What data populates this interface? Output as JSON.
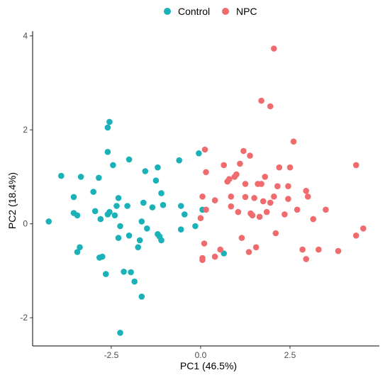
{
  "chart_data": {
    "type": "scatter",
    "xlabel": "PC1 (46.5%)",
    "ylabel": "PC2 (18.4%)",
    "xlim": [
      -4.7,
      5.0
    ],
    "ylim": [
      -2.6,
      4.1
    ],
    "xticks": [
      -2.5,
      0.0,
      2.5
    ],
    "xtick_labels": [
      "-2.5",
      "0.0",
      "2.5"
    ],
    "yticks": [
      -2,
      0,
      2,
      4
    ],
    "ytick_labels": [
      "-2",
      "0",
      "2",
      "4"
    ],
    "grid": false,
    "legend_position": "top",
    "series": [
      {
        "name": "Control",
        "color": "#1ab2b8",
        "points": [
          [
            -4.25,
            0.05
          ],
          [
            -3.9,
            1.02
          ],
          [
            -3.55,
            0.57
          ],
          [
            -3.55,
            0.23
          ],
          [
            -3.45,
            0.18
          ],
          [
            -3.45,
            -0.6
          ],
          [
            -3.38,
            -0.5
          ],
          [
            -3.35,
            1.0
          ],
          [
            -3.0,
            0.68
          ],
          [
            -2.95,
            0.27
          ],
          [
            -2.85,
            0.98
          ],
          [
            -2.83,
            -0.72
          ],
          [
            -2.75,
            -0.7
          ],
          [
            -2.8,
            0.1
          ],
          [
            -2.65,
            -1.07
          ],
          [
            -2.6,
            0.2
          ],
          [
            -2.6,
            2.05
          ],
          [
            -2.55,
            2.17
          ],
          [
            -2.6,
            1.53
          ],
          [
            -2.55,
            0.25
          ],
          [
            -2.45,
            1.25
          ],
          [
            -2.4,
            0.18
          ],
          [
            -2.35,
            0.38
          ],
          [
            -2.3,
            -0.3
          ],
          [
            -2.3,
            0.55
          ],
          [
            -2.25,
            -0.05
          ],
          [
            -2.25,
            -2.32
          ],
          [
            -2.15,
            -1.02
          ],
          [
            -2.05,
            0.38
          ],
          [
            -2.0,
            -0.25
          ],
          [
            -2.0,
            1.37
          ],
          [
            -1.95,
            -1.03
          ],
          [
            -1.85,
            -1.23
          ],
          [
            -1.75,
            -0.5
          ],
          [
            -1.7,
            -0.35
          ],
          [
            -1.65,
            0.05
          ],
          [
            -1.65,
            -1.55
          ],
          [
            -1.6,
            0.45
          ],
          [
            -1.55,
            1.12
          ],
          [
            -1.5,
            -0.1
          ],
          [
            -1.35,
            0.35
          ],
          [
            -1.25,
            0.92
          ],
          [
            -1.2,
            -0.22
          ],
          [
            -1.15,
            -0.27
          ],
          [
            -1.1,
            -0.35
          ],
          [
            -1.1,
            0.65
          ],
          [
            -1.05,
            0.4
          ],
          [
            -1.2,
            1.2
          ],
          [
            -0.6,
            1.35
          ],
          [
            -0.55,
            0.38
          ],
          [
            -0.55,
            -0.12
          ],
          [
            -0.45,
            0.2
          ],
          [
            -0.15,
            -0.05
          ],
          [
            -0.05,
            1.5
          ],
          [
            0.05,
            0.3
          ],
          [
            0.65,
            -0.63
          ]
        ]
      },
      {
        "name": "NPC",
        "color": "#f06b6d",
        "points": [
          [
            0.05,
            0.58
          ],
          [
            0.0,
            0.12
          ],
          [
            0.05,
            -0.77
          ],
          [
            0.05,
            -0.73
          ],
          [
            0.1,
            -0.42
          ],
          [
            0.12,
            1.58
          ],
          [
            0.15,
            1.1
          ],
          [
            0.15,
            0.3
          ],
          [
            0.4,
            -0.7
          ],
          [
            0.4,
            0.5
          ],
          [
            0.55,
            -0.55
          ],
          [
            0.65,
            1.25
          ],
          [
            0.75,
            0.9
          ],
          [
            0.8,
            0.95
          ],
          [
            0.85,
            0.58
          ],
          [
            0.85,
            0.37
          ],
          [
            0.95,
            1.0
          ],
          [
            1.0,
            1.05
          ],
          [
            1.05,
            0.25
          ],
          [
            1.1,
            1.28
          ],
          [
            1.15,
            -0.3
          ],
          [
            1.2,
            1.55
          ],
          [
            1.25,
            0.85
          ],
          [
            1.25,
            0.57
          ],
          [
            1.35,
            -0.6
          ],
          [
            1.38,
            1.45
          ],
          [
            1.4,
            0.22
          ],
          [
            1.45,
            0.18
          ],
          [
            1.5,
            0.55
          ],
          [
            1.55,
            -0.5
          ],
          [
            1.6,
            0.85
          ],
          [
            1.65,
            0.15
          ],
          [
            1.7,
            2.62
          ],
          [
            1.7,
            0.85
          ],
          [
            1.75,
            0.48
          ],
          [
            1.8,
            1.0
          ],
          [
            1.85,
            0.25
          ],
          [
            1.95,
            2.5
          ],
          [
            1.95,
            0.45
          ],
          [
            2.05,
            3.73
          ],
          [
            2.05,
            0.58
          ],
          [
            2.1,
            -0.2
          ],
          [
            2.15,
            0.8
          ],
          [
            2.2,
            1.2
          ],
          [
            2.35,
            0.2
          ],
          [
            2.45,
            0.8
          ],
          [
            2.45,
            0.53
          ],
          [
            2.5,
            1.2
          ],
          [
            2.6,
            1.75
          ],
          [
            2.7,
            0.3
          ],
          [
            2.85,
            -0.55
          ],
          [
            2.95,
            -0.75
          ],
          [
            2.95,
            0.7
          ],
          [
            3.0,
            0.58
          ],
          [
            3.15,
            0.1
          ],
          [
            3.3,
            -0.55
          ],
          [
            3.5,
            0.3
          ],
          [
            3.85,
            -0.58
          ],
          [
            4.35,
            1.25
          ],
          [
            4.35,
            -0.25
          ],
          [
            4.55,
            -0.1
          ]
        ]
      }
    ]
  }
}
